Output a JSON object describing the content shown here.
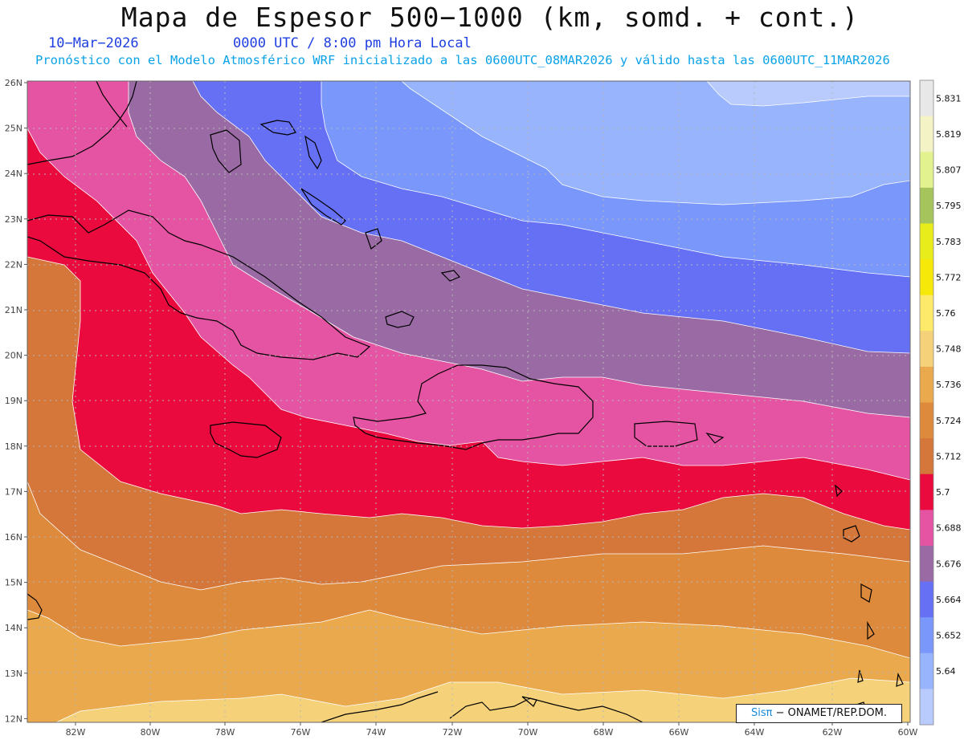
{
  "header": {
    "title": "Mapa de Espesor 500−1000 (km, somd. + cont.)",
    "date": "10−Mar−2026",
    "time": "0000 UTC / 8:00 pm Hora Local",
    "model_info": "Pronóstico con el Modelo Atmosférico WRF inicializado a las 0600UTC_08MAR2026 y válido hasta las  0600UTC_11MAR2026"
  },
  "map": {
    "lat_labels": [
      "26N",
      "25N",
      "24N",
      "23N",
      "22N",
      "21N",
      "20N",
      "19N",
      "18N",
      "17N",
      "16N",
      "15N",
      "14N",
      "13N",
      "12N"
    ],
    "lon_labels": [
      "82W",
      "80W",
      "78W",
      "76W",
      "74W",
      "72W",
      "70W",
      "68W",
      "66W",
      "64W",
      "62W",
      "60W"
    ],
    "bands": [
      {
        "level": "5.748-5.760",
        "color": "#f5d27a"
      },
      {
        "level": "5.736-5.748",
        "color": "#eaa94c"
      },
      {
        "level": "5.724-5.736",
        "color": "#de8a3c"
      },
      {
        "level": "5.712-5.724",
        "color": "#d5763a"
      },
      {
        "level": "5.700-5.712",
        "color": "#ea0a3d"
      },
      {
        "level": "5.688-5.700",
        "color": "#e454a2"
      },
      {
        "level": "5.676-5.688",
        "color": "#9a6aa4"
      },
      {
        "level": "5.664-5.676",
        "color": "#6670f4"
      },
      {
        "level": "5.652-5.664",
        "color": "#7a97fb"
      },
      {
        "level": "5.640-5.652",
        "color": "#97b4fc"
      },
      {
        "level": "<5.640",
        "color": "#b9cafc"
      }
    ]
  },
  "colorbar": {
    "labels": [
      "5.831",
      "5.819",
      "5.807",
      "5.795",
      "5.783",
      "5.772",
      "5.76",
      "5.748",
      "5.736",
      "5.724",
      "5.712",
      "5.7",
      "5.688",
      "5.676",
      "5.664",
      "5.652",
      "5.64"
    ],
    "colors": [
      "#e8e8e8",
      "#f3f3c6",
      "#e2f28e",
      "#a6c45c",
      "#e8ec1a",
      "#f6e90a",
      "#fdea6a",
      "#f5d27a",
      "#eaa94c",
      "#de8a3c",
      "#d5763a",
      "#ea0a3d",
      "#e454a2",
      "#9a6aa4",
      "#6670f4",
      "#7a97fb",
      "#97b4fc",
      "#b9cafc"
    ]
  },
  "credit": {
    "sis": "Sisπ",
    "org": " − ONAMET/REP.DOM."
  }
}
